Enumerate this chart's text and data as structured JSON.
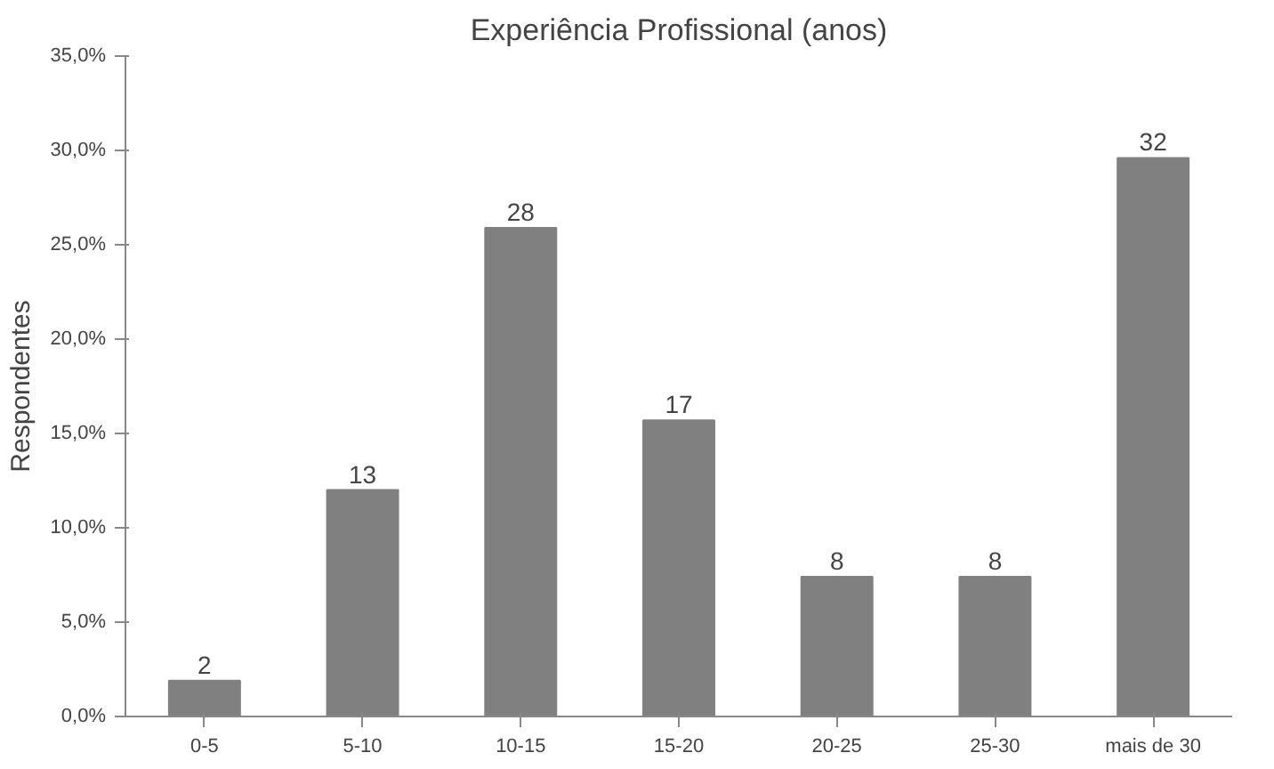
{
  "chart_data": {
    "type": "bar",
    "title": "Experiência Profissional (anos)",
    "ylabel": "Respondentes",
    "categories": [
      "0-5",
      "5-10",
      "10-15",
      "15-20",
      "20-25",
      "25-30",
      "mais de 30"
    ],
    "values": [
      1.9,
      12.0,
      25.9,
      15.7,
      7.4,
      7.4,
      29.6
    ],
    "annotations": [
      {
        "text": "2",
        "x": "0-5",
        "y": 1.9
      },
      {
        "text": "13",
        "x": "5-10",
        "y": 12.0
      },
      {
        "text": "28",
        "x": "10-15",
        "y": 25.9
      },
      {
        "text": "17",
        "x": "15-20",
        "y": 15.7
      },
      {
        "text": "8",
        "x": "20-25",
        "y": 7.4
      },
      {
        "text": "8",
        "x": "25-30",
        "y": 7.4
      },
      {
        "text": "32",
        "x": "mais de 30",
        "y": 29.6
      }
    ],
    "color": "#808080",
    "ylim": [
      0,
      35
    ],
    "yticks": [
      {
        "value": 0,
        "label": "0,0%"
      },
      {
        "value": 5,
        "label": "5,0%"
      },
      {
        "value": 10,
        "label": "10,0%"
      },
      {
        "value": 15,
        "label": "15,0%"
      },
      {
        "value": 20,
        "label": "20,0%"
      },
      {
        "value": 25,
        "label": "25,0%"
      },
      {
        "value": 30,
        "label": "30,0%"
      },
      {
        "value": 35,
        "label": "35,0%"
      }
    ],
    "grid": false
  }
}
